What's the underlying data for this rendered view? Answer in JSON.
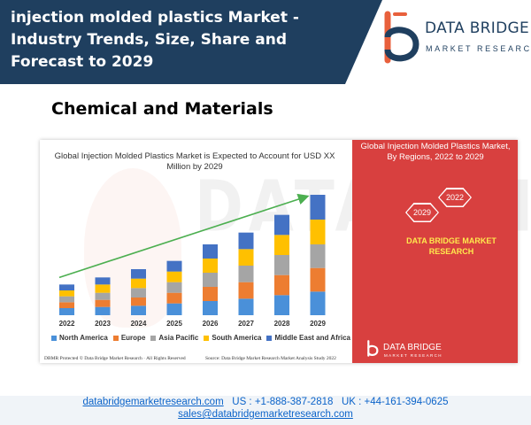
{
  "header": {
    "title": "injection molded plastics Market - Industry Trends, Size, Share and Forecast to 2029"
  },
  "logo": {
    "name": "DATA BRIDGE",
    "tagline": "MARKET RESEARCH"
  },
  "section_title": "Chemical and Materials",
  "watermark_text": "DATA BRIDGE",
  "side_panel": {
    "title": "Global Injection Molded Plastics Market, By Regions, 2022 to 2029",
    "hex_start": "2029",
    "hex_end": "2022",
    "brand": "DATA BRIDGE MARKET RESEARCH",
    "logo_name": "DATA BRIDGE",
    "logo_tagline": "MARKET RESEARCH"
  },
  "chart_footer": {
    "left": "DBMR Protected © Data Bridge Market Research · All Rights Reserved",
    "right": "Source: Data Bridge Market Research Market Analysis Study 2022"
  },
  "footer": {
    "website": "databridgemarketresearch.com",
    "phone_us": "US : +1-888-387-2818",
    "phone_uk": "UK : +44-161-394-0625",
    "email": "sales@databridgemarketresearch.com"
  },
  "colors": {
    "header_bg": "#1f3f5f",
    "panel_red": "#d8403f",
    "arrow": "#4caf50",
    "link": "#0b63c9"
  },
  "chart_data": {
    "type": "bar",
    "stacked": true,
    "title": "Global Injection Molded Plastics Market is Expected to Account for USD XX Million by 2029",
    "categories": [
      "2022",
      "2023",
      "2024",
      "2025",
      "2026",
      "2027",
      "2028",
      "2029"
    ],
    "series": [
      {
        "name": "North America",
        "color": "#4a90d9",
        "values": [
          6,
          7,
          8,
          10,
          12,
          14,
          17,
          20
        ]
      },
      {
        "name": "Europe",
        "color": "#ed7d31",
        "values": [
          5,
          6,
          7,
          9,
          12,
          14,
          17,
          20
        ]
      },
      {
        "name": "Asia Pacific",
        "color": "#a5a5a5",
        "values": [
          5,
          6,
          8,
          9,
          12,
          14,
          17,
          20
        ]
      },
      {
        "name": "South America",
        "color": "#ffc000",
        "values": [
          5,
          7,
          8,
          9,
          12,
          14,
          17,
          21
        ]
      },
      {
        "name": "Middle East and Africa",
        "color": "#4472c4",
        "values": [
          5,
          6,
          8,
          9,
          12,
          14,
          17,
          21
        ]
      }
    ],
    "trend_arrow": true,
    "grid": false,
    "legend_position": "bottom"
  }
}
